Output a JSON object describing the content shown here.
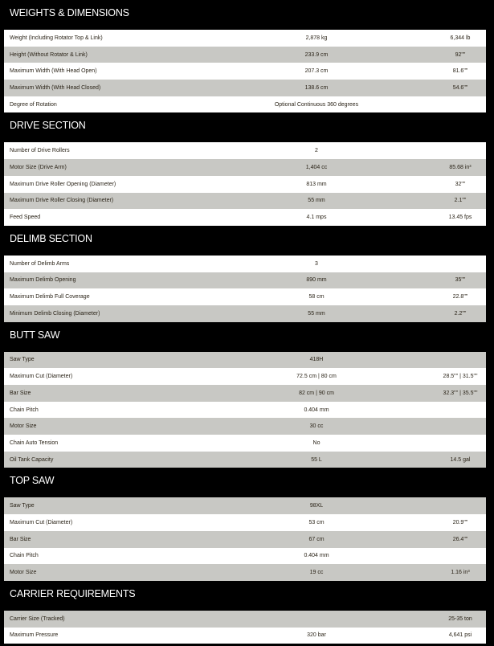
{
  "sections": [
    {
      "title": "WEIGHTS & DIMENSIONS",
      "first_row": "white",
      "rows": [
        {
          "label": "Weight (Including Rotator Top & Link)",
          "metric": "2,878 kg",
          "imperial": "6,344 lb"
        },
        {
          "label": "Height (Without Rotator & Link)",
          "metric": "233.9 cm",
          "imperial": "92\"\""
        },
        {
          "label": "Maximum Width (With Head Open)",
          "metric": "207.3 cm",
          "imperial": "81.6\"\""
        },
        {
          "label": "Maximum Width (With Head Closed)",
          "metric": "138.6 cm",
          "imperial": "54.6\"\""
        },
        {
          "label": "Degree of Rotation",
          "metric": "Optional Continuous 360 degrees",
          "imperial": ""
        }
      ]
    },
    {
      "title": "DRIVE SECTION",
      "first_row": "white",
      "rows": [
        {
          "label": "Number of Drive Rollers",
          "metric": "2",
          "imperial": ""
        },
        {
          "label": "Motor Size (Drive Arm)",
          "metric": "1,404 cc",
          "imperial": "85.68 in³"
        },
        {
          "label": "Maximum Drive Roller Opening (Diameter)",
          "metric": "813 mm",
          "imperial": "32\"\""
        },
        {
          "label": "Maximum Drive Roller Closing (Diameter)",
          "metric": "55 mm",
          "imperial": "2.1\"\""
        },
        {
          "label": "Feed Speed",
          "metric": "4.1 mps",
          "imperial": "13.45 fps"
        }
      ]
    },
    {
      "title": "DELIMB SECTION",
      "first_row": "white",
      "rows": [
        {
          "label": "Number of Delimb Arms",
          "metric": "3",
          "imperial": ""
        },
        {
          "label": "Maximum Delimb Opening",
          "metric": "890 mm",
          "imperial": "35\"\""
        },
        {
          "label": "Maximum Delimb Full Coverage",
          "metric": "58 cm",
          "imperial": "22.8\"\""
        },
        {
          "label": "Minimum Delimb Closing (Diameter)",
          "metric": "55 mm",
          "imperial": "2.2\"\""
        }
      ]
    },
    {
      "title": "BUTT SAW",
      "first_row": "gray",
      "rows": [
        {
          "label": "Saw Type",
          "metric": "418H",
          "imperial": ""
        },
        {
          "label": "Maximum Cut (Diameter)",
          "metric": "72.5 cm | 80 cm",
          "imperial": "28.5\"\" | 31.5\"\""
        },
        {
          "label": "Bar Size",
          "metric": "82 cm | 90 cm",
          "imperial": "32.3\"\" | 35.5\"\""
        },
        {
          "label": "Chain Pitch",
          "metric": "0.404 mm",
          "imperial": ""
        },
        {
          "label": "Motor Size",
          "metric": "30 cc",
          "imperial": ""
        },
        {
          "label": "Chain Auto Tension",
          "metric": "No",
          "imperial": ""
        },
        {
          "label": "Oil Tank Capacity",
          "metric": "55 L",
          "imperial": "14.5 gal"
        }
      ]
    },
    {
      "title": "TOP SAW",
      "first_row": "gray",
      "rows": [
        {
          "label": "Saw Type",
          "metric": "98XL",
          "imperial": ""
        },
        {
          "label": "Maximum Cut (Diameter)",
          "metric": "53 cm",
          "imperial": "20.9\"\""
        },
        {
          "label": "Bar Size",
          "metric": "67 cm",
          "imperial": "26.4\"\""
        },
        {
          "label": "Chain Pitch",
          "metric": "0.404 mm",
          "imperial": ""
        },
        {
          "label": "Motor Size",
          "metric": "19 cc",
          "imperial": "1.16 in³"
        }
      ]
    },
    {
      "title": "CARRIER REQUIREMENTS",
      "first_row": "gray",
      "rows": [
        {
          "label": "Carrier Size (Tracked)",
          "metric": "",
          "imperial": "25-35 ton"
        },
        {
          "label": "Maximum Pressure",
          "metric": "320 bar",
          "imperial": "4,641 psi"
        }
      ]
    }
  ]
}
